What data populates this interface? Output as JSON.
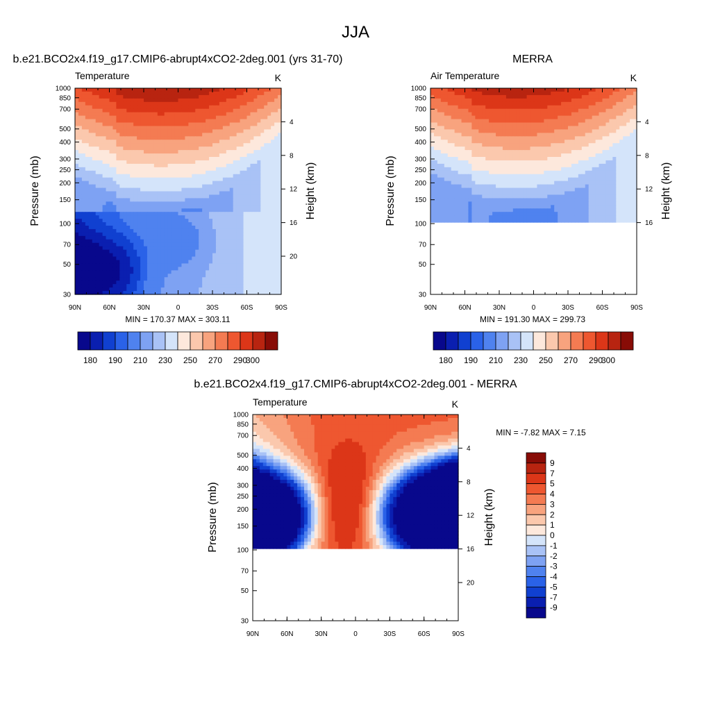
{
  "figure": {
    "title": "JJA"
  },
  "colors": {
    "abs_palette": [
      "#08088c",
      "#0a1fb0",
      "#1040d0",
      "#2a62e8",
      "#4f82ef",
      "#7ea2f3",
      "#a9c2f6",
      "#d4e4fa",
      "#fde8dc",
      "#fbc8ad",
      "#f8a37e",
      "#f47b52",
      "#ee5730",
      "#dc3618",
      "#b82410",
      "#880c06"
    ],
    "diff_palette": [
      "#08088c",
      "#0a1fb0",
      "#1040d0",
      "#2a62e8",
      "#4f82ef",
      "#7ea2f3",
      "#a9c2f6",
      "#d4e4fa",
      "#fde8dc",
      "#fbc8ad",
      "#f8a37e",
      "#f47b52",
      "#ee5730",
      "#dc3618",
      "#b82410",
      "#880c06"
    ]
  },
  "chart_data": [
    {
      "id": "model",
      "type": "heatmap",
      "title": "b.e21.BCO2x4.f19_g17.CMIP6-abrupt4xCO2-2deg.001 (yrs 31-70)",
      "left_label": "Temperature",
      "right_label": "K",
      "ylabel": "Pressure (mb)",
      "ylabel_right": "Height (km)",
      "x_tick_labels": [
        "90N",
        "60N",
        "30N",
        "0",
        "30S",
        "60S",
        "90S"
      ],
      "x_ticks": [
        -90,
        -60,
        -30,
        0,
        30,
        60,
        90
      ],
      "y_tick_labels": [
        "30",
        "50",
        "70",
        "100",
        "150",
        "200",
        "250",
        "300",
        "400",
        "500",
        "700",
        "850",
        "1000"
      ],
      "y_ticks": [
        30,
        50,
        70,
        100,
        150,
        200,
        250,
        300,
        400,
        500,
        700,
        850,
        1000
      ],
      "height_ticks": [
        "4",
        "8",
        "12",
        "16",
        "20"
      ],
      "height_values": [
        4,
        8,
        12,
        16,
        20
      ],
      "ylim": [
        1000,
        30
      ],
      "data_top_pressure": 30,
      "field": "abs_model",
      "minmax_text": "MIN = 170.37  MAX = 303.11",
      "min": 170.37,
      "max": 303.11,
      "colorbar_labels": [
        "180",
        "190",
        "210",
        "230",
        "250",
        "270",
        "290",
        "300"
      ]
    },
    {
      "id": "obs",
      "type": "heatmap",
      "title": "MERRA",
      "left_label": "Air Temperature",
      "right_label": "K",
      "ylabel": "Pressure (mb)",
      "ylabel_right": "Height (km)",
      "x_tick_labels": [
        "90N",
        "60N",
        "30N",
        "0",
        "30S",
        "60S",
        "90S"
      ],
      "x_ticks": [
        -90,
        -60,
        -30,
        0,
        30,
        60,
        90
      ],
      "y_tick_labels": [
        "30",
        "50",
        "70",
        "100",
        "150",
        "200",
        "250",
        "300",
        "400",
        "500",
        "700",
        "850",
        "1000"
      ],
      "y_ticks": [
        30,
        50,
        70,
        100,
        150,
        200,
        250,
        300,
        400,
        500,
        700,
        850,
        1000
      ],
      "height_ticks": [
        "4",
        "8",
        "12",
        "16"
      ],
      "height_values": [
        4,
        8,
        12,
        16
      ],
      "ylim": [
        1000,
        30
      ],
      "data_top_pressure": 100,
      "field": "abs_obs",
      "minmax_text": "MIN = 191.30  MAX = 299.73",
      "min": 191.3,
      "max": 299.73,
      "colorbar_labels": [
        "180",
        "190",
        "210",
        "230",
        "250",
        "270",
        "290",
        "300"
      ]
    },
    {
      "id": "diff",
      "type": "heatmap",
      "title": "b.e21.BCO2x4.f19_g17.CMIP6-abrupt4xCO2-2deg.001 - MERRA",
      "left_label": "Temperature",
      "right_label": "K",
      "ylabel": "Pressure (mb)",
      "ylabel_right": "Height (km)",
      "x_tick_labels": [
        "90N",
        "60N",
        "30N",
        "0",
        "30S",
        "60S",
        "90S"
      ],
      "x_ticks": [
        -90,
        -60,
        -30,
        0,
        30,
        60,
        90
      ],
      "y_tick_labels": [
        "30",
        "50",
        "70",
        "100",
        "150",
        "200",
        "250",
        "300",
        "400",
        "500",
        "700",
        "850",
        "1000"
      ],
      "y_ticks": [
        30,
        50,
        70,
        100,
        150,
        200,
        250,
        300,
        400,
        500,
        700,
        850,
        1000
      ],
      "height_ticks": [
        "4",
        "8",
        "12",
        "16",
        "20"
      ],
      "height_values": [
        4,
        8,
        12,
        16,
        20
      ],
      "ylim": [
        1000,
        30
      ],
      "data_top_pressure": 100,
      "field": "diff",
      "minmax_text": "MIN =  -7.82  MAX =   7.15",
      "min": -7.82,
      "max": 7.15,
      "colorbar_labels": [
        "9",
        "7",
        "5",
        "4",
        "3",
        "2",
        "1",
        "0",
        "-1",
        "-2",
        "-3",
        "-4",
        "-5",
        "-7",
        "-9"
      ]
    }
  ]
}
